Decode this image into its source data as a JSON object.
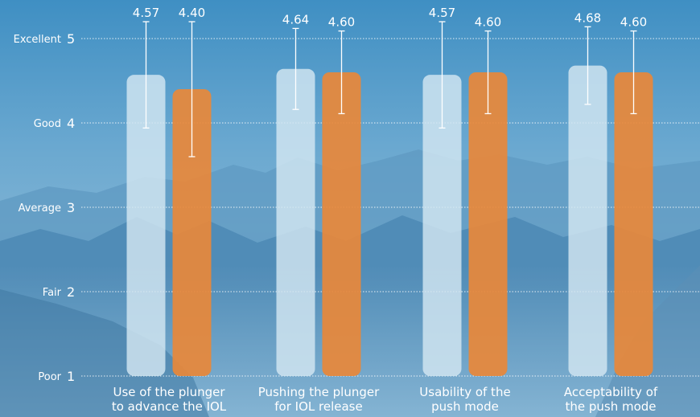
{
  "chart_data": {
    "type": "bar",
    "categories": [
      [
        "Use of the plunger",
        "to advance the IOL"
      ],
      [
        "Pushing the plunger",
        "for IOL release"
      ],
      [
        "Usability of the",
        "push mode"
      ],
      [
        "Acceptability of",
        "the push mode"
      ]
    ],
    "series": [
      {
        "values": [
          4.57,
          4.64,
          4.57,
          4.68
        ],
        "error_low": [
          3.94,
          4.16,
          3.94,
          4.22
        ],
        "error_high": [
          5.2,
          5.12,
          5.2,
          5.14
        ],
        "color": "#d3e6f1"
      },
      {
        "values": [
          4.4,
          4.6,
          4.6,
          4.6
        ],
        "error_low": [
          3.6,
          4.11,
          4.11,
          4.11
        ],
        "error_high": [
          5.2,
          5.09,
          5.09,
          5.09
        ],
        "color": "#e8883a"
      }
    ],
    "value_labels": [
      [
        "4.57",
        "4.40"
      ],
      [
        "4.64",
        "4.60"
      ],
      [
        "4.57",
        "4.60"
      ],
      [
        "4.68",
        "4.60"
      ]
    ],
    "ylim": [
      1,
      5
    ],
    "y_ticks": [
      {
        "value": 5,
        "word": "Excellent",
        "num": "5"
      },
      {
        "value": 4,
        "word": "Good",
        "num": "4"
      },
      {
        "value": 3,
        "word": "Average",
        "num": "3"
      },
      {
        "value": 2,
        "word": "Fair",
        "num": "2"
      },
      {
        "value": 1,
        "word": "Poor",
        "num": "1"
      }
    ],
    "grid": true
  }
}
